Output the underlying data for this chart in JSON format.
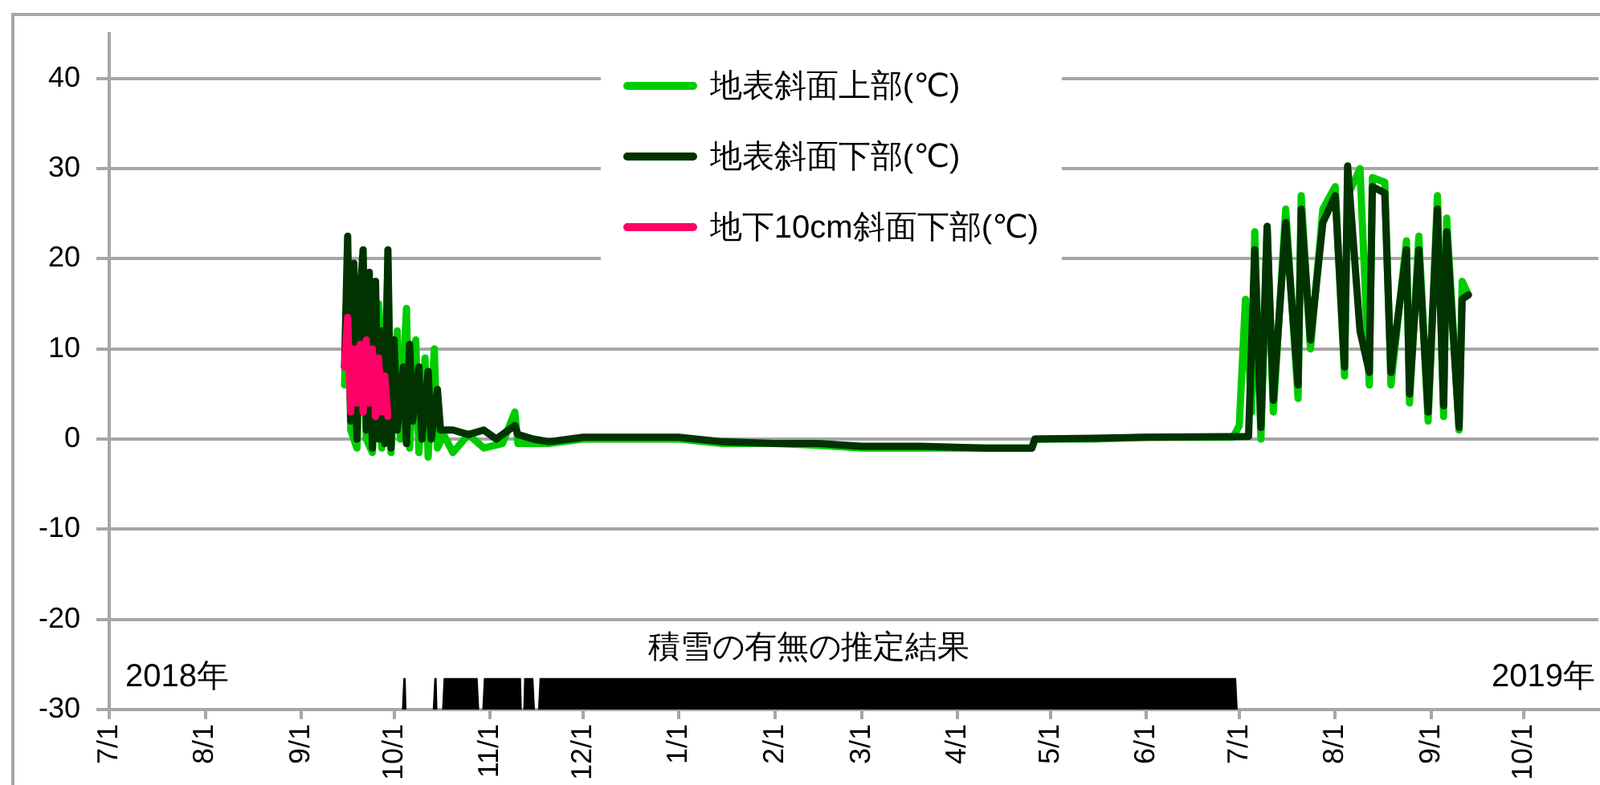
{
  "chart_data": {
    "type": "line",
    "xlim": [
      "2018-07-01",
      "2019-10-25"
    ],
    "xticks": [
      {
        "value": "2018-07-01",
        "label": "7/1"
      },
      {
        "value": "2018-08-01",
        "label": "8/1"
      },
      {
        "value": "2018-09-01",
        "label": "9/1"
      },
      {
        "value": "2018-10-01",
        "label": "10/1"
      },
      {
        "value": "2018-11-01",
        "label": "11/1"
      },
      {
        "value": "2018-12-01",
        "label": "12/1"
      },
      {
        "value": "2019-01-01",
        "label": "1/1"
      },
      {
        "value": "2019-02-01",
        "label": "2/1"
      },
      {
        "value": "2019-03-01",
        "label": "3/1"
      },
      {
        "value": "2019-04-01",
        "label": "4/1"
      },
      {
        "value": "2019-05-01",
        "label": "5/1"
      },
      {
        "value": "2019-06-01",
        "label": "6/1"
      },
      {
        "value": "2019-07-01",
        "label": "7/1"
      },
      {
        "value": "2019-08-01",
        "label": "8/1"
      },
      {
        "value": "2019-09-01",
        "label": "9/1"
      },
      {
        "value": "2019-10-01",
        "label": "10/1"
      }
    ],
    "ylim": [
      -30,
      45
    ],
    "yticks": [
      -30,
      -20,
      -10,
      0,
      10,
      20,
      30,
      40
    ],
    "grid": "y",
    "legend": "top",
    "marker": "none",
    "line_style": "solid",
    "annotations": [
      "2018年",
      "2019年",
      "積雪の有無の推定結果"
    ],
    "series": [
      {
        "name": "地表斜面上部(℃)",
        "color": "#00cc00",
        "x": [
          "2018-09-15",
          "2018-09-16",
          "2018-09-17",
          "2018-09-19",
          "2018-09-21",
          "2018-09-22",
          "2018-09-24",
          "2018-09-26",
          "2018-09-27",
          "2018-09-29",
          "2018-09-30",
          "2018-10-02",
          "2018-10-03",
          "2018-10-05",
          "2018-10-06",
          "2018-10-08",
          "2018-10-09",
          "2018-10-11",
          "2018-10-12",
          "2018-10-14",
          "2018-10-15",
          "2018-10-17",
          "2018-10-20",
          "2018-10-25",
          "2018-10-30",
          "2018-11-05",
          "2018-11-09",
          "2018-11-10",
          "2018-11-15",
          "2018-11-20",
          "2018-12-01",
          "2018-12-15",
          "2019-01-01",
          "2019-01-15",
          "2019-02-01",
          "2019-02-15",
          "2019-03-01",
          "2019-03-20",
          "2019-04-10",
          "2019-04-25",
          "2019-04-26",
          "2019-05-15",
          "2019-06-01",
          "2019-06-29",
          "2019-07-01",
          "2019-07-03",
          "2019-07-05",
          "2019-07-06",
          "2019-07-08",
          "2019-07-10",
          "2019-07-12",
          "2019-07-16",
          "2019-07-20",
          "2019-07-21",
          "2019-07-24",
          "2019-07-28",
          "2019-08-01",
          "2019-08-04",
          "2019-08-05",
          "2019-08-09",
          "2019-08-12",
          "2019-08-13",
          "2019-08-17",
          "2019-08-19",
          "2019-08-24",
          "2019-08-25",
          "2019-08-28",
          "2019-08-31",
          "2019-09-03",
          "2019-09-05",
          "2019-09-06",
          "2019-09-10",
          "2019-09-11",
          "2019-09-13"
        ],
        "values": [
          6,
          20,
          1,
          -1,
          19,
          0,
          -1.5,
          15,
          -1,
          19,
          -1.5,
          12,
          0,
          14.5,
          -1,
          11,
          -1.5,
          9,
          -2,
          10,
          -1,
          0.5,
          -1.5,
          0.5,
          -1,
          -0.5,
          3,
          -0.5,
          -0.5,
          -0.5,
          0,
          0,
          0,
          -0.5,
          -0.5,
          -0.7,
          -1,
          -1,
          -1,
          -1,
          0,
          0,
          0.2,
          0.2,
          1.5,
          15.5,
          3,
          23,
          0,
          23.5,
          3,
          25.5,
          4.5,
          27,
          10,
          25.5,
          28,
          7,
          27,
          30,
          6,
          29,
          28.5,
          6,
          22,
          4,
          22.5,
          2,
          27,
          2.5,
          24.5,
          1,
          17.5,
          16
        ]
      },
      {
        "name": "地表斜面下部(℃)",
        "color": "#003300",
        "x": [
          "2018-09-15",
          "2018-09-16",
          "2018-09-17",
          "2018-09-18",
          "2018-09-19",
          "2018-09-20",
          "2018-09-21",
          "2018-09-22",
          "2018-09-23",
          "2018-09-24",
          "2018-09-25",
          "2018-09-26",
          "2018-09-27",
          "2018-09-28",
          "2018-09-29",
          "2018-09-30",
          "2018-10-01",
          "2018-10-02",
          "2018-10-04",
          "2018-10-05",
          "2018-10-06",
          "2018-10-07",
          "2018-10-09",
          "2018-10-10",
          "2018-10-12",
          "2018-10-13",
          "2018-10-15",
          "2018-10-16",
          "2018-10-20",
          "2018-10-25",
          "2018-10-30",
          "2018-11-03",
          "2018-11-09",
          "2018-11-10",
          "2018-11-15",
          "2018-11-20",
          "2018-12-01",
          "2018-12-15",
          "2019-01-01",
          "2019-01-15",
          "2019-02-01",
          "2019-02-15",
          "2019-03-01",
          "2019-03-20",
          "2019-04-10",
          "2019-04-25",
          "2019-04-26",
          "2019-05-15",
          "2019-06-01",
          "2019-07-04",
          "2019-07-06",
          "2019-07-08",
          "2019-07-10",
          "2019-07-12",
          "2019-07-16",
          "2019-07-20",
          "2019-07-21",
          "2019-07-24",
          "2019-07-28",
          "2019-08-01",
          "2019-08-04",
          "2019-08-05",
          "2019-08-09",
          "2019-08-12",
          "2019-08-13",
          "2019-08-17",
          "2019-08-19",
          "2019-08-24",
          "2019-08-25",
          "2019-08-28",
          "2019-08-31",
          "2019-09-03",
          "2019-09-05",
          "2019-09-06",
          "2019-09-10",
          "2019-09-11",
          "2019-09-13"
        ],
        "values": [
          8,
          22.5,
          2,
          19.5,
          0,
          16,
          21,
          1,
          18.5,
          -1,
          17.5,
          0,
          12,
          -0.5,
          21,
          -1,
          11,
          1,
          8,
          -0.5,
          10.5,
          2,
          8,
          0,
          7.5,
          0,
          5.5,
          1,
          1,
          0.5,
          1,
          0,
          1.5,
          0.5,
          0,
          -0.3,
          0.2,
          0.2,
          0.2,
          -0.3,
          -0.5,
          -0.5,
          -0.8,
          -0.8,
          -1,
          -1,
          0,
          0.1,
          0.2,
          0.3,
          21,
          1.3,
          23.6,
          4.3,
          24,
          6,
          25.5,
          11,
          24,
          27,
          8,
          30.3,
          12,
          7.4,
          28,
          27.3,
          7.4,
          21,
          5,
          21,
          3,
          25.5,
          3.7,
          23,
          1.3,
          15.5,
          16
        ]
      },
      {
        "name": "地下10cm斜面下部(℃)",
        "color": "#ff0066",
        "x": [
          "2018-09-15",
          "2018-09-16",
          "2018-09-17",
          "2018-09-18",
          "2018-09-19",
          "2018-09-20",
          "2018-09-21",
          "2018-09-22",
          "2018-09-23",
          "2018-09-24",
          "2018-09-25",
          "2018-09-26",
          "2018-09-27",
          "2018-09-28",
          "2018-09-29"
        ],
        "values": [
          8,
          13.5,
          3,
          10,
          4,
          10.5,
          3,
          11,
          4,
          10,
          2.5,
          9,
          3,
          7,
          2.5
        ]
      },
      {
        "type": "area",
        "color": "#000000",
        "x": [
          "2018-10-03T12:00",
          "2018-10-04",
          "2018-10-04T18:00",
          "2018-10-05",
          "2018-10-13T12:00",
          "2018-10-14",
          "2018-10-14T18:00",
          "2018-10-15",
          "2018-10-16T12:00",
          "2018-10-17",
          "2018-10-28",
          "2018-10-28T12:00",
          "2018-10-29T12:00",
          "2018-10-30",
          "2018-11-11",
          "2018-11-11T06:00",
          "2018-11-11T18:00",
          "2018-11-12",
          "2018-11-15",
          "2018-11-15T12:00",
          "2018-11-16T12:00",
          "2018-11-17",
          "2019-06-30",
          "2019-06-30T12:00"
        ],
        "values": [
          -30,
          -26.5,
          -26.5,
          -30,
          -30,
          -26.5,
          -26.5,
          -30,
          -30,
          -26.5,
          -26.5,
          -30,
          -30,
          -26.5,
          -26.5,
          -30,
          -30,
          -26.5,
          -26.5,
          -30,
          -30,
          -26.5,
          -26.5,
          -30
        ]
      }
    ]
  }
}
